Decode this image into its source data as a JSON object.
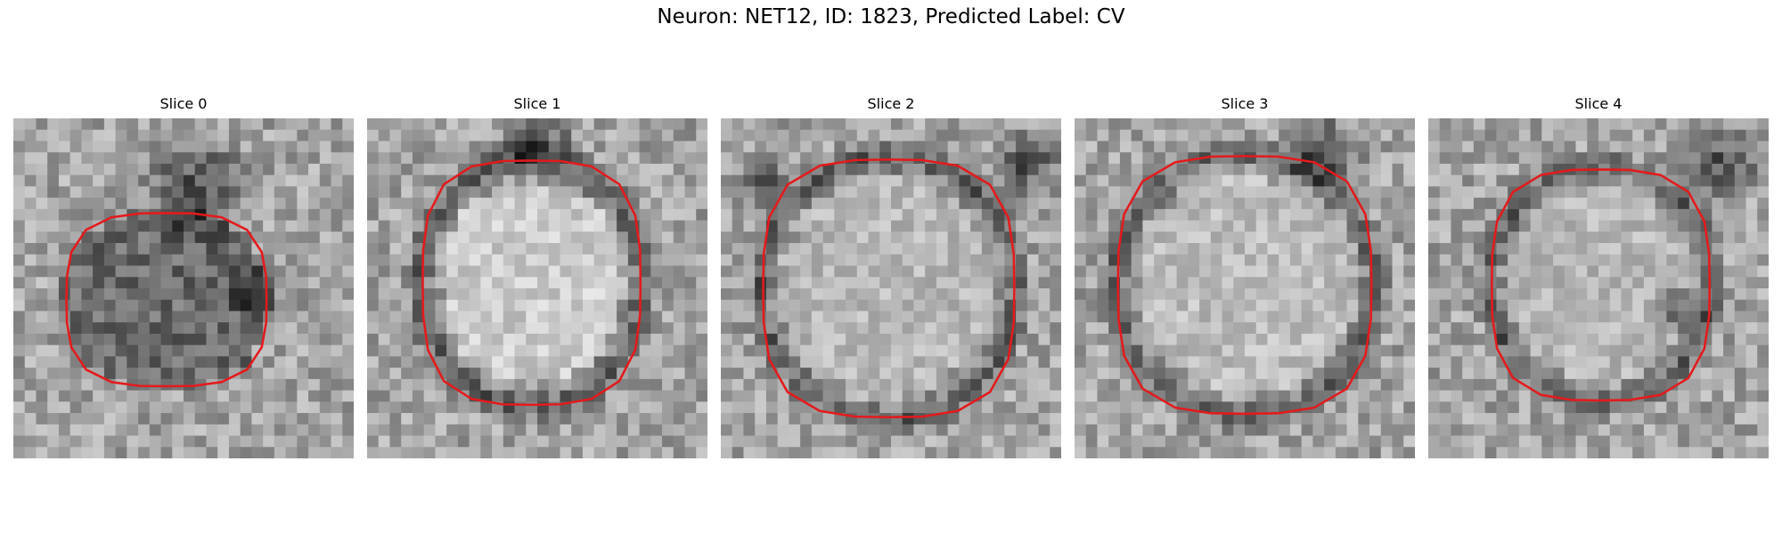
{
  "figure": {
    "title": "Neuron: NET12, ID: 1823, Predicted Label: CV"
  },
  "panels": [
    {
      "title": "Slice 0"
    },
    {
      "title": "Slice 1"
    },
    {
      "title": "Slice 2"
    },
    {
      "title": "Slice 3"
    },
    {
      "title": "Slice 4"
    }
  ],
  "colors": {
    "contour": "#e41a1c",
    "background": "#ffffff"
  }
}
